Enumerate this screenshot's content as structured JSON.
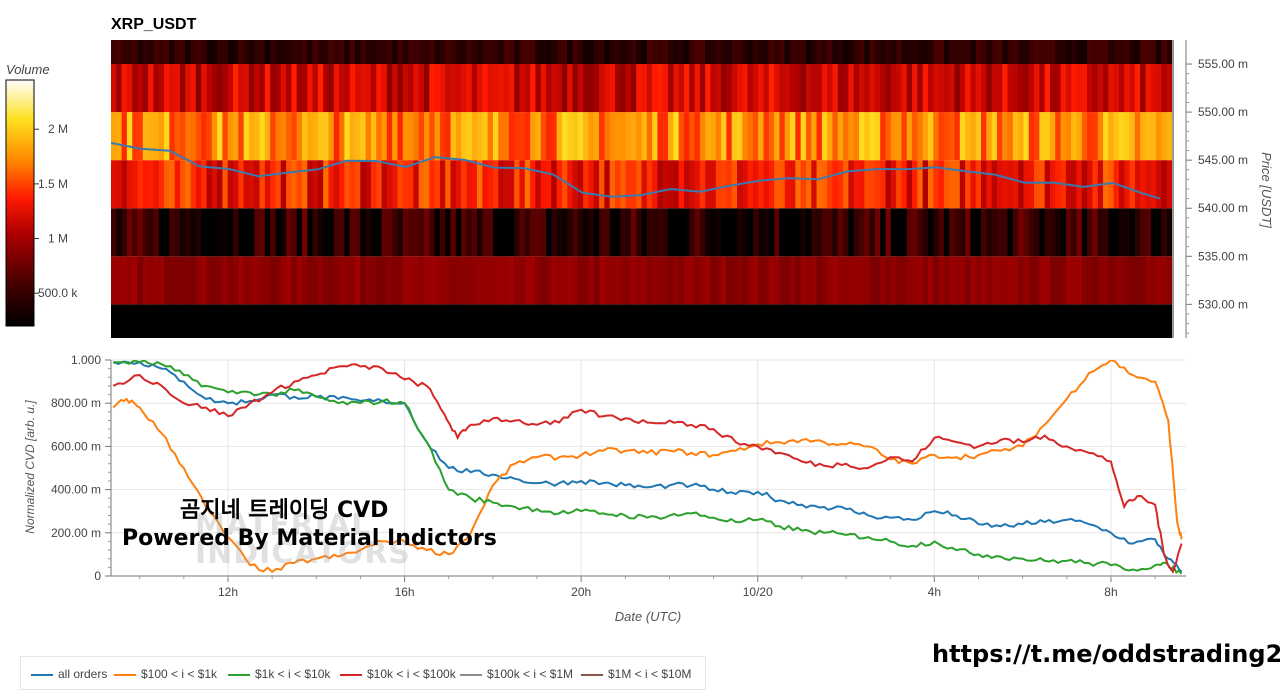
{
  "chart_data": [
    {
      "type": "heatmap",
      "title": "XRP_USDT",
      "y_axis_label": "Price [USDT]",
      "y_ticks": [
        "555.00 m",
        "550.00 m",
        "545.00 m",
        "540.00 m",
        "535.00 m",
        "530.00 m"
      ],
      "y_range": [
        526.5,
        557.5
      ],
      "price_bins": [
        527.5,
        532.5,
        537.5,
        542.5,
        547.5,
        552.5,
        557.5
      ],
      "colorbar": {
        "label": "Volume",
        "ticks": [
          "2 M",
          "1.5 M",
          "1 M",
          "500.0 k"
        ],
        "range": [
          200000,
          2450000
        ]
      },
      "band_volume_levels": [
        [
          120000,
          90000
        ],
        [
          900000,
          80000
        ],
        [
          380000,
          420000
        ],
        [
          1350000,
          300000
        ],
        [
          1750000,
          350000
        ],
        [
          1150000,
          250000
        ],
        [
          450000,
          150000
        ]
      ],
      "price_line": {
        "color": "#3b7ab0",
        "x": [
          0,
          0.5,
          1,
          1.5,
          2,
          2.5,
          3,
          3.5,
          4,
          4.5,
          5,
          5.5,
          6,
          6.5,
          7,
          7.5,
          8,
          8.5,
          9,
          9.5,
          10,
          10.5,
          11,
          11.5,
          12,
          12.5,
          13,
          13.5,
          14,
          14.5,
          15,
          15.5,
          16,
          16.5,
          17,
          17.5,
          17.8
        ],
        "y": [
          546.8,
          546.2,
          545.9,
          544.5,
          543.8,
          543.5,
          544.0,
          544.3,
          545.0,
          544.8,
          544.4,
          545.2,
          544.9,
          544.5,
          544.0,
          543.7,
          541.8,
          541.0,
          541.4,
          542.2,
          542.0,
          542.5,
          543.0,
          543.2,
          542.9,
          543.7,
          544.0,
          544.2,
          544.4,
          544.0,
          543.4,
          542.9,
          542.9,
          542.5,
          542.6,
          541.5,
          541.0
        ]
      }
    },
    {
      "type": "line",
      "x_label": "Date (UTC)",
      "y_label": "Normalized CVD [arb. u.]",
      "x_ticks": [
        "12h",
        "16h",
        "20h",
        "10/20",
        "4h",
        "8h"
      ],
      "x_tick_hours": [
        2,
        6,
        10,
        14,
        18,
        22
      ],
      "x_range_hours": [
        -0.65,
        23.7
      ],
      "y_range": [
        0,
        1
      ],
      "y_ticks": [
        "0",
        "200.00 m",
        "400.00 m",
        "600.00 m",
        "800.00 m",
        "1.000"
      ],
      "y_tick_values": [
        0,
        0.2,
        0.4,
        0.6,
        0.8,
        1.0
      ],
      "series": [
        {
          "name": "all orders",
          "color": "#1f77b4",
          "x": [
            -0.6,
            0,
            0.5,
            1,
            1.5,
            2,
            2.5,
            3,
            3.5,
            4,
            4.5,
            5,
            5.5,
            6,
            6.5,
            7,
            7.5,
            8,
            8.5,
            9,
            9.5,
            10,
            10.5,
            11,
            11.5,
            12,
            12.5,
            13,
            13.5,
            14,
            14.5,
            15,
            15.5,
            16,
            16.5,
            17,
            17.5,
            18,
            18.5,
            19,
            19.5,
            20,
            20.5,
            21,
            21.5,
            22,
            22.5,
            23,
            23.3,
            23.6
          ],
          "y": [
            0.99,
            0.99,
            0.96,
            0.9,
            0.82,
            0.8,
            0.81,
            0.84,
            0.83,
            0.83,
            0.82,
            0.81,
            0.81,
            0.8,
            0.62,
            0.5,
            0.48,
            0.47,
            0.45,
            0.43,
            0.43,
            0.44,
            0.43,
            0.42,
            0.41,
            0.42,
            0.42,
            0.4,
            0.38,
            0.39,
            0.35,
            0.33,
            0.32,
            0.31,
            0.28,
            0.27,
            0.26,
            0.3,
            0.28,
            0.24,
            0.23,
            0.24,
            0.25,
            0.26,
            0.24,
            0.2,
            0.15,
            0.17,
            0.08,
            0.02
          ]
        },
        {
          "name": "$100 < i < $1k",
          "color": "#ff7f0e",
          "x": [
            -0.6,
            -0.3,
            0,
            0.5,
            1,
            1.5,
            2,
            2.5,
            3,
            3.5,
            4,
            4.5,
            5,
            5.5,
            6,
            6.5,
            7,
            7.5,
            8,
            8.5,
            9,
            9.5,
            10,
            10.5,
            11,
            11.5,
            12,
            12.5,
            13,
            13.5,
            14,
            14.5,
            15,
            15.5,
            16,
            16.5,
            17,
            17.5,
            18,
            18.5,
            19,
            19.5,
            20,
            20.5,
            21,
            21.5,
            22,
            22.5,
            23,
            23.3,
            23.5,
            23.6
          ],
          "y": [
            0.78,
            0.82,
            0.78,
            0.66,
            0.5,
            0.32,
            0.18,
            0.05,
            0.02,
            0.06,
            0.08,
            0.09,
            0.12,
            0.16,
            0.16,
            0.12,
            0.1,
            0.2,
            0.42,
            0.52,
            0.55,
            0.55,
            0.56,
            0.58,
            0.58,
            0.57,
            0.58,
            0.57,
            0.56,
            0.58,
            0.61,
            0.62,
            0.63,
            0.62,
            0.61,
            0.6,
            0.54,
            0.52,
            0.56,
            0.55,
            0.56,
            0.58,
            0.6,
            0.7,
            0.82,
            0.94,
            1.0,
            0.93,
            0.9,
            0.72,
            0.25,
            0.17
          ]
        },
        {
          "name": "$1k < i < $10k",
          "color": "#2ca02c",
          "x": [
            -0.6,
            0,
            0.5,
            1,
            1.5,
            2,
            2.5,
            3,
            3.5,
            4,
            4.5,
            5,
            5.5,
            6,
            6.5,
            7,
            7.5,
            8,
            8.5,
            9,
            9.5,
            10,
            10.5,
            11,
            11.5,
            12,
            12.5,
            13,
            13.5,
            14,
            14.5,
            15,
            15.5,
            16,
            16.5,
            17,
            17.5,
            18,
            18.5,
            19,
            19.5,
            20,
            20.5,
            21,
            21.5,
            22,
            22.5,
            23,
            23.3,
            23.6
          ],
          "y": [
            0.99,
            0.99,
            0.98,
            0.93,
            0.88,
            0.85,
            0.85,
            0.84,
            0.86,
            0.83,
            0.8,
            0.8,
            0.81,
            0.8,
            0.62,
            0.4,
            0.36,
            0.34,
            0.32,
            0.31,
            0.29,
            0.3,
            0.29,
            0.28,
            0.27,
            0.28,
            0.29,
            0.27,
            0.25,
            0.26,
            0.23,
            0.21,
            0.2,
            0.19,
            0.18,
            0.16,
            0.14,
            0.16,
            0.12,
            0.1,
            0.09,
            0.08,
            0.07,
            0.07,
            0.06,
            0.05,
            0.03,
            0.05,
            0.05,
            0.01
          ]
        },
        {
          "name": "$10k < i < $100k",
          "color": "#d62728",
          "x": [
            -0.6,
            0,
            0.5,
            1,
            1.5,
            2,
            2.5,
            3,
            3.5,
            4,
            4.5,
            5,
            5.5,
            6,
            6.5,
            6.9,
            7.2,
            7.5,
            8,
            8.5,
            9,
            9.5,
            10,
            10.5,
            11,
            11.5,
            12,
            12.5,
            13,
            13.5,
            14,
            14.5,
            15,
            15.5,
            16,
            16.5,
            17,
            17.5,
            18,
            18.5,
            19,
            19.5,
            20,
            20.5,
            21,
            21.5,
            22,
            22.3,
            22.6,
            23,
            23.2,
            23.4,
            23.6
          ],
          "y": [
            0.88,
            0.93,
            0.88,
            0.8,
            0.78,
            0.74,
            0.8,
            0.85,
            0.9,
            0.93,
            0.97,
            0.97,
            0.96,
            0.91,
            0.88,
            0.75,
            0.64,
            0.7,
            0.73,
            0.72,
            0.7,
            0.71,
            0.77,
            0.74,
            0.73,
            0.71,
            0.72,
            0.7,
            0.68,
            0.62,
            0.6,
            0.57,
            0.53,
            0.51,
            0.52,
            0.5,
            0.55,
            0.53,
            0.64,
            0.62,
            0.6,
            0.63,
            0.62,
            0.65,
            0.6,
            0.57,
            0.53,
            0.32,
            0.37,
            0.33,
            0.1,
            0.02,
            0.15
          ]
        },
        {
          "name": "$100k < i < $1M",
          "color": "#8c8c8c",
          "x": [],
          "y": []
        },
        {
          "name": "$1M < i < $10M",
          "color": "#8c564b",
          "x": [],
          "y": []
        }
      ]
    }
  ],
  "overlay": {
    "title_kr": "곰지네 트레이딩 CVD",
    "powered_by": "Powered By Material Indictors",
    "watermark_lines": [
      "MATERIAL",
      "INDICATORS"
    ],
    "telegram_link": "https://t.me/oddstrading2"
  }
}
